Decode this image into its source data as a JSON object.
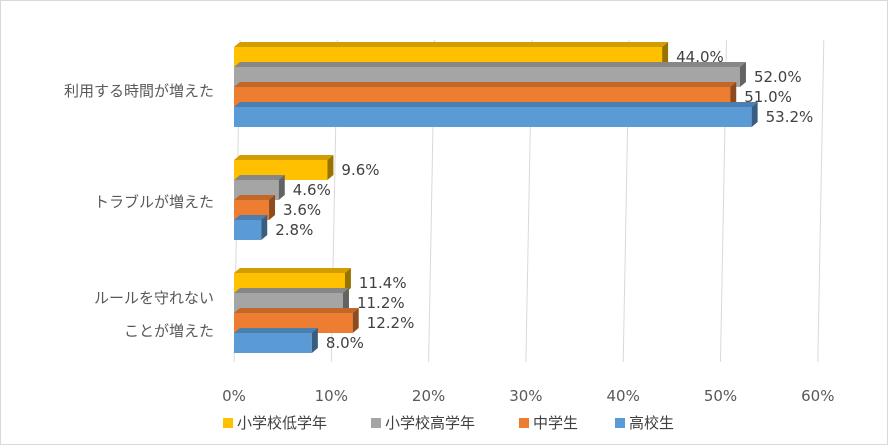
{
  "chart_data": {
    "type": "bar",
    "orientation": "horizontal",
    "categories": [
      [
        "利用する時間が増えた"
      ],
      [
        "トラブルが増えた"
      ],
      [
        "ルールを守れない",
        "ことが増えた"
      ]
    ],
    "series": [
      {
        "name": "小学校低学年",
        "color": "#FFC000",
        "values": [
          44.0,
          9.6,
          11.4
        ],
        "labels": [
          "44.0%",
          "9.6%",
          "11.4%"
        ]
      },
      {
        "name": "小学校高学年",
        "color": "#A5A5A5",
        "values": [
          52.0,
          4.6,
          11.2
        ],
        "labels": [
          "52.0%",
          "4.6%",
          "11.2%"
        ]
      },
      {
        "name": "中学生",
        "color": "#ED7D31",
        "values": [
          51.0,
          3.6,
          12.2
        ],
        "labels": [
          "51.0%",
          "3.6%",
          "12.2%"
        ]
      },
      {
        "name": "高校生",
        "color": "#5B9BD5",
        "values": [
          53.2,
          2.8,
          8.0
        ],
        "labels": [
          "53.2%",
          "2.8%",
          "8.0%"
        ]
      }
    ],
    "xlim": [
      0,
      60
    ],
    "x_ticks": [
      "0%",
      "10%",
      "20%",
      "30%",
      "40%",
      "50%",
      "60%"
    ],
    "grid": true,
    "legend_position": "bottom",
    "style": "3d-clustered-bar"
  }
}
